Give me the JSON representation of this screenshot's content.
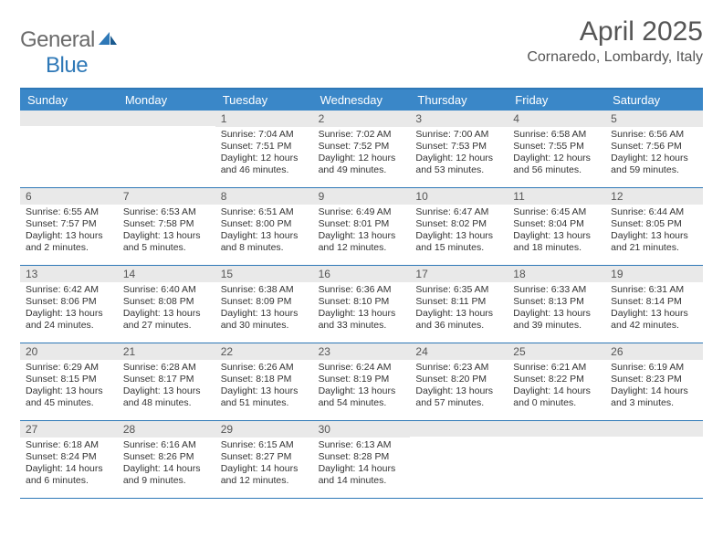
{
  "logo": {
    "word1": "General",
    "word2": "Blue"
  },
  "title": "April 2025",
  "location": "Cornaredo, Lombardy, Italy",
  "colors": {
    "header_bg": "#3a87c8",
    "border": "#2e78b7",
    "daynum_bg": "#e9e9e9",
    "text": "#333333",
    "logo_gray": "#6b6b6b",
    "logo_blue": "#2e78b7"
  },
  "typography": {
    "month_fontsize": 30,
    "location_fontsize": 16,
    "dow_fontsize": 13,
    "body_fontsize": 10.5
  },
  "days_of_week": [
    "Sunday",
    "Monday",
    "Tuesday",
    "Wednesday",
    "Thursday",
    "Friday",
    "Saturday"
  ],
  "weeks": [
    [
      null,
      null,
      {
        "n": "1",
        "sunrise": "7:04 AM",
        "sunset": "7:51 PM",
        "daylight": "12 hours and 46 minutes."
      },
      {
        "n": "2",
        "sunrise": "7:02 AM",
        "sunset": "7:52 PM",
        "daylight": "12 hours and 49 minutes."
      },
      {
        "n": "3",
        "sunrise": "7:00 AM",
        "sunset": "7:53 PM",
        "daylight": "12 hours and 53 minutes."
      },
      {
        "n": "4",
        "sunrise": "6:58 AM",
        "sunset": "7:55 PM",
        "daylight": "12 hours and 56 minutes."
      },
      {
        "n": "5",
        "sunrise": "6:56 AM",
        "sunset": "7:56 PM",
        "daylight": "12 hours and 59 minutes."
      }
    ],
    [
      {
        "n": "6",
        "sunrise": "6:55 AM",
        "sunset": "7:57 PM",
        "daylight": "13 hours and 2 minutes."
      },
      {
        "n": "7",
        "sunrise": "6:53 AM",
        "sunset": "7:58 PM",
        "daylight": "13 hours and 5 minutes."
      },
      {
        "n": "8",
        "sunrise": "6:51 AM",
        "sunset": "8:00 PM",
        "daylight": "13 hours and 8 minutes."
      },
      {
        "n": "9",
        "sunrise": "6:49 AM",
        "sunset": "8:01 PM",
        "daylight": "13 hours and 12 minutes."
      },
      {
        "n": "10",
        "sunrise": "6:47 AM",
        "sunset": "8:02 PM",
        "daylight": "13 hours and 15 minutes."
      },
      {
        "n": "11",
        "sunrise": "6:45 AM",
        "sunset": "8:04 PM",
        "daylight": "13 hours and 18 minutes."
      },
      {
        "n": "12",
        "sunrise": "6:44 AM",
        "sunset": "8:05 PM",
        "daylight": "13 hours and 21 minutes."
      }
    ],
    [
      {
        "n": "13",
        "sunrise": "6:42 AM",
        "sunset": "8:06 PM",
        "daylight": "13 hours and 24 minutes."
      },
      {
        "n": "14",
        "sunrise": "6:40 AM",
        "sunset": "8:08 PM",
        "daylight": "13 hours and 27 minutes."
      },
      {
        "n": "15",
        "sunrise": "6:38 AM",
        "sunset": "8:09 PM",
        "daylight": "13 hours and 30 minutes."
      },
      {
        "n": "16",
        "sunrise": "6:36 AM",
        "sunset": "8:10 PM",
        "daylight": "13 hours and 33 minutes."
      },
      {
        "n": "17",
        "sunrise": "6:35 AM",
        "sunset": "8:11 PM",
        "daylight": "13 hours and 36 minutes."
      },
      {
        "n": "18",
        "sunrise": "6:33 AM",
        "sunset": "8:13 PM",
        "daylight": "13 hours and 39 minutes."
      },
      {
        "n": "19",
        "sunrise": "6:31 AM",
        "sunset": "8:14 PM",
        "daylight": "13 hours and 42 minutes."
      }
    ],
    [
      {
        "n": "20",
        "sunrise": "6:29 AM",
        "sunset": "8:15 PM",
        "daylight": "13 hours and 45 minutes."
      },
      {
        "n": "21",
        "sunrise": "6:28 AM",
        "sunset": "8:17 PM",
        "daylight": "13 hours and 48 minutes."
      },
      {
        "n": "22",
        "sunrise": "6:26 AM",
        "sunset": "8:18 PM",
        "daylight": "13 hours and 51 minutes."
      },
      {
        "n": "23",
        "sunrise": "6:24 AM",
        "sunset": "8:19 PM",
        "daylight": "13 hours and 54 minutes."
      },
      {
        "n": "24",
        "sunrise": "6:23 AM",
        "sunset": "8:20 PM",
        "daylight": "13 hours and 57 minutes."
      },
      {
        "n": "25",
        "sunrise": "6:21 AM",
        "sunset": "8:22 PM",
        "daylight": "14 hours and 0 minutes."
      },
      {
        "n": "26",
        "sunrise": "6:19 AM",
        "sunset": "8:23 PM",
        "daylight": "14 hours and 3 minutes."
      }
    ],
    [
      {
        "n": "27",
        "sunrise": "6:18 AM",
        "sunset": "8:24 PM",
        "daylight": "14 hours and 6 minutes."
      },
      {
        "n": "28",
        "sunrise": "6:16 AM",
        "sunset": "8:26 PM",
        "daylight": "14 hours and 9 minutes."
      },
      {
        "n": "29",
        "sunrise": "6:15 AM",
        "sunset": "8:27 PM",
        "daylight": "14 hours and 12 minutes."
      },
      {
        "n": "30",
        "sunrise": "6:13 AM",
        "sunset": "8:28 PM",
        "daylight": "14 hours and 14 minutes."
      },
      null,
      null,
      null
    ]
  ],
  "labels": {
    "sunrise": "Sunrise:",
    "sunset": "Sunset:",
    "daylight": "Daylight:"
  }
}
